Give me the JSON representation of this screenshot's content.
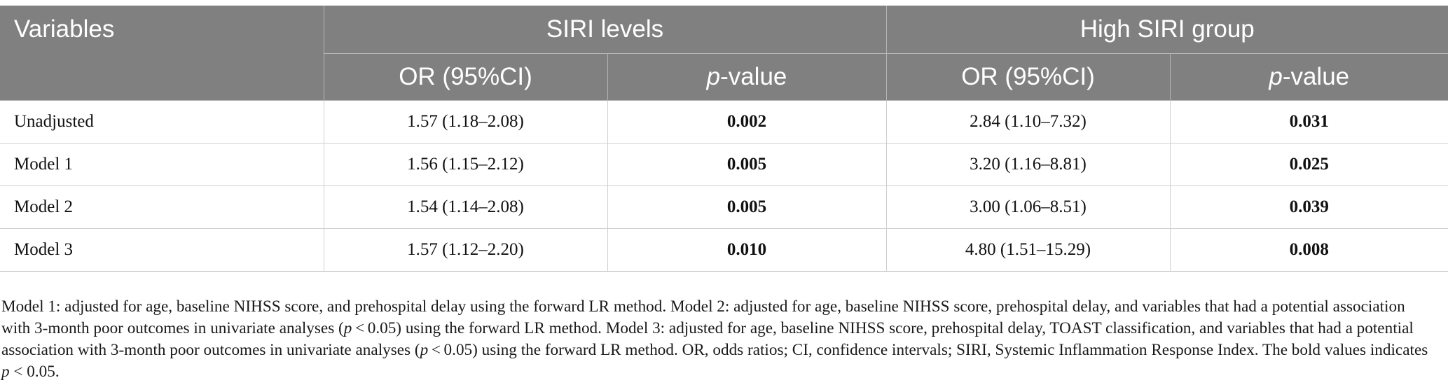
{
  "table": {
    "header": {
      "variables": "Variables",
      "group1": "SIRI levels",
      "group2": "High SIRI group",
      "or_label": "OR (95%CI)",
      "p_prefix": "p",
      "p_suffix": "-value"
    },
    "rows": [
      {
        "label": "Unadjusted",
        "siri_or": "1.57 (1.18–2.08)",
        "siri_p": "0.002",
        "high_or": "2.84 (1.10–7.32)",
        "high_p": "0.031"
      },
      {
        "label": "Model 1",
        "siri_or": "1.56 (1.15–2.12)",
        "siri_p": "0.005",
        "high_or": "3.20 (1.16–8.81)",
        "high_p": "0.025"
      },
      {
        "label": "Model 2",
        "siri_or": "1.54 (1.14–2.08)",
        "siri_p": "0.005",
        "high_or": "3.00 (1.06–8.51)",
        "high_p": "0.039"
      },
      {
        "label": "Model 3",
        "siri_or": "1.57 (1.12–2.20)",
        "siri_p": "0.010",
        "high_or": "4.80 (1.51–15.29)",
        "high_p": "0.008"
      }
    ]
  },
  "footnote": {
    "s1": "Model 1: adjusted for age, baseline NIHSS score, and prehospital delay using the forward LR method. Model 2: adjusted for age, baseline NIHSS score, prehospital delay, and variables that had a potential association with 3-month poor outcomes in univariate analyses (",
    "p1": "p",
    "s2": " < 0.05) using the forward LR method. Model 3: adjusted for age, baseline NIHSS score, prehospital delay, TOAST classification, and variables that had a potential association with 3-month poor outcomes in univariate analyses (",
    "p2": "p",
    "s3": " < 0.05) using the forward LR method. OR, odds ratios; CI, confidence intervals; SIRI, Systemic Inflammation Response Index. The bold values indicates ",
    "p3": "p",
    "s4": " < 0.05."
  }
}
